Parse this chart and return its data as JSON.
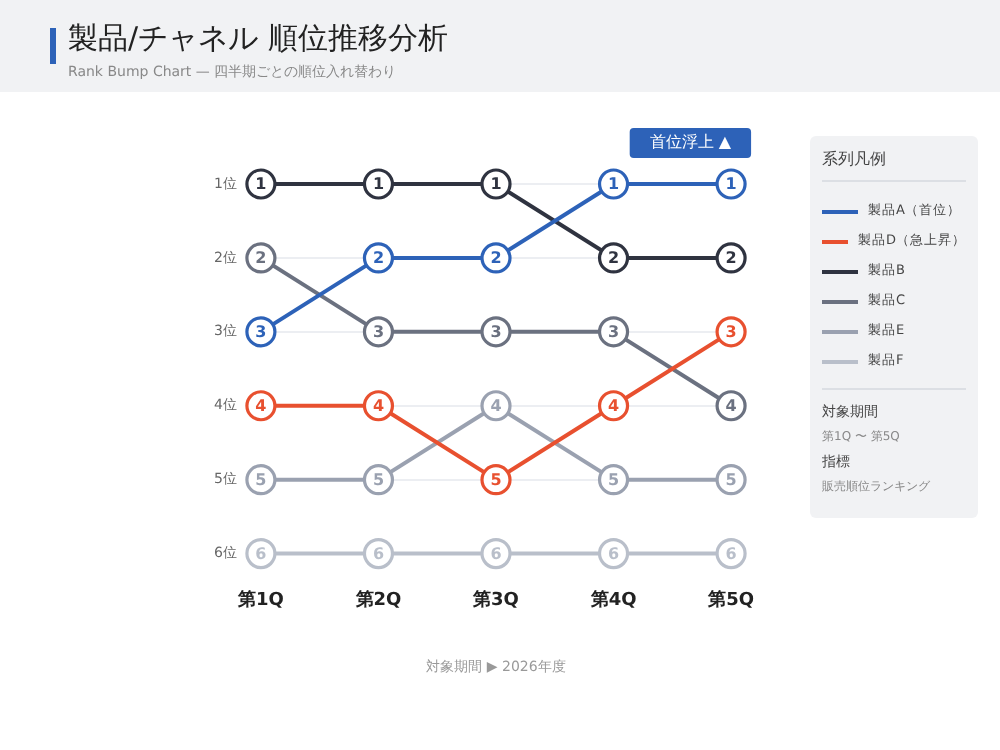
{
  "chart_data": {
    "type": "line",
    "title": "製品/チャネル 順位推移分析",
    "subtitle": "Rank Bump Chart — 四半期ごとの順位入れ替わり",
    "xlabel": "対象期間 ▶ 2026年度",
    "legend_title": "系列凡例",
    "categories": [
      "第1Q",
      "第2Q",
      "第3Q",
      "第4Q",
      "第5Q"
    ],
    "series": [
      {
        "name": "製品A（首位）",
        "color": "#2d62b8",
        "values": [
          3,
          2,
          2,
          1,
          1
        ]
      },
      {
        "name": "製品D（急上昇）",
        "color": "#e8502f",
        "values": [
          4,
          4,
          5,
          4,
          3
        ]
      },
      {
        "name": "製品B",
        "color": "#2f3340",
        "values": [
          1,
          1,
          1,
          2,
          2
        ]
      },
      {
        "name": "製品C",
        "color": "#6b7180",
        "values": [
          2,
          3,
          3,
          3,
          4
        ]
      },
      {
        "name": "製品E",
        "color": "#9aa1b0",
        "values": [
          5,
          5,
          4,
          5,
          5
        ]
      },
      {
        "name": "製品F",
        "color": "#b9bfca",
        "values": [
          6,
          6,
          6,
          6,
          6
        ]
      }
    ],
    "ylim": [
      6,
      1
    ],
    "yticks": [
      {
        "value": 1,
        "label": "1位"
      },
      {
        "value": 2,
        "label": "2位"
      },
      {
        "value": 3,
        "label": "3位"
      },
      {
        "value": 4,
        "label": "4位"
      },
      {
        "value": 5,
        "label": "5位"
      },
      {
        "value": 6,
        "label": "6位"
      }
    ],
    "grid": "y",
    "legend": "right",
    "marker": "circle",
    "line_style": "solid",
    "data_labels": true,
    "annotations": [
      {
        "text": "首位浮上 ▲",
        "x": "第5Q",
        "y": 1
      },
      "対象期間",
      "第1Q 〜 第5Q",
      "指標",
      "販売順位ランキング"
    ]
  }
}
